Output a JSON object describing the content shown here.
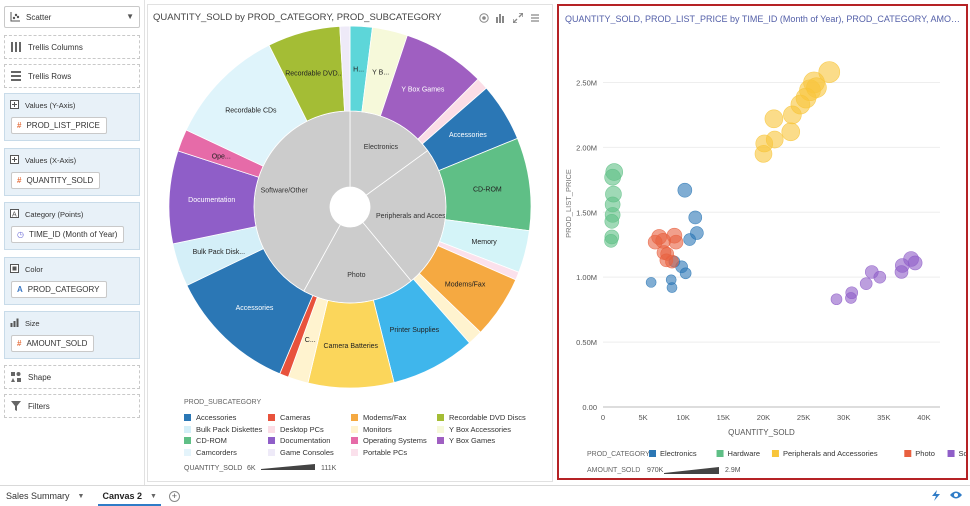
{
  "grammar": {
    "chart_type": "Scatter",
    "trellis_columns": "Trellis Columns",
    "trellis_rows": "Trellis Rows",
    "slots": [
      {
        "label": "Values (Y-Axis)",
        "item": "PROD_LIST_PRICE",
        "item_icon": "hash-icon"
      },
      {
        "label": "Values (X-Axis)",
        "item": "QUANTITY_SOLD",
        "item_icon": "hash-icon"
      },
      {
        "label": "Category (Points)",
        "item": "TIME_ID (Month of Year)",
        "item_icon": "clock-icon"
      },
      {
        "label": "Color",
        "item": "PROD_CATEGORY",
        "item_icon": "text-attribute-icon"
      },
      {
        "label": "Size",
        "item": "AMOUNT_SOLD",
        "item_icon": "hash-icon"
      }
    ],
    "shape": "Shape",
    "filters": "Filters"
  },
  "sunburst": {
    "title": "QUANTITY_SOLD by PROD_CATEGORY, PROD_SUBCATEGORY",
    "legend_title": "PROD_SUBCATEGORY",
    "legend": [
      {
        "name": "Accessories",
        "color": "#2b77b5"
      },
      {
        "name": "Bulk Pack Diskettes",
        "color": "#d4eff8"
      },
      {
        "name": "CD-ROM",
        "color": "#5fbf86"
      },
      {
        "name": "Camcorders",
        "color": "#e4f4fb"
      },
      {
        "name": "Cameras",
        "color": "#e8523c"
      },
      {
        "name": "Desktop PCs",
        "color": "#fbdde6"
      },
      {
        "name": "Documentation",
        "color": "#8f5ec8"
      },
      {
        "name": "Game Consoles",
        "color": "#eeeaf8"
      },
      {
        "name": "Modems/Fax",
        "color": "#f5a941"
      },
      {
        "name": "Monitors",
        "color": "#fff3cf"
      },
      {
        "name": "Operating Systems",
        "color": "#e66ba8"
      },
      {
        "name": "Portable PCs",
        "color": "#fbe1ec"
      },
      {
        "name": "Recordable DVD Discs",
        "color": "#a4bd35"
      },
      {
        "name": "Y Box Accessories",
        "color": "#f6f9da"
      },
      {
        "name": "Y Box Games",
        "color": "#9f5fc1"
      }
    ],
    "size_label": "QUANTITY_SOLD",
    "size_min": "6K",
    "size_max": "111K",
    "inner": [
      {
        "name": "Electronics",
        "value": 15
      },
      {
        "name": "Peripherals and Accesso...",
        "value": 24
      },
      {
        "name": "Photo",
        "value": 19
      },
      {
        "name": "Software/Other",
        "value": 42
      }
    ],
    "outer": [
      {
        "name": "H...",
        "value": 2.2,
        "color": "#5dd6d9"
      },
      {
        "name": "Y B...",
        "value": 3.5,
        "color": "#f6f9da"
      },
      {
        "name": "Y Box Games",
        "value": 8.2,
        "color": "#9f5fc1"
      },
      {
        "name": "",
        "value": 1.2,
        "color": "#fbdde6"
      },
      {
        "name": "Accessories",
        "value": 5.8,
        "color": "#2b77b5"
      },
      {
        "name": "CD-ROM",
        "value": 9.2,
        "color": "#5fbf86"
      },
      {
        "name": "Memory",
        "value": 4.2,
        "color": "#d4f4f8"
      },
      {
        "name": "",
        "value": 0.8,
        "color": "#fbe1ec"
      },
      {
        "name": "Modems/Fax",
        "value": 6.2,
        "color": "#f5a941"
      },
      {
        "name": "",
        "value": 1.5,
        "color": "#fff3cf"
      },
      {
        "name": "Printer Supplies",
        "value": 8.4,
        "color": "#3fb6ec"
      },
      {
        "name": "Camera Batteries",
        "value": 8.5,
        "color": "#fbd65b"
      },
      {
        "name": "C...",
        "value": 2.0,
        "color": "#fff3cf"
      },
      {
        "name": "",
        "value": 0.9,
        "color": "#e8523c"
      },
      {
        "name": "Accessories",
        "value": 12.8,
        "color": "#2b77b5"
      },
      {
        "name": "Bulk Pack Disk...",
        "value": 4.3,
        "color": "#d4eff8"
      },
      {
        "name": "Documentation",
        "value": 9.2,
        "color": "#8f5ec8"
      },
      {
        "name": "Ope...",
        "value": 2.2,
        "color": "#e66ba8"
      },
      {
        "name": "Recordable CDs",
        "value": 11.8,
        "color": "#dff4fb"
      },
      {
        "name": "Recordable DVD...",
        "value": 7.2,
        "color": "#a4bd35"
      },
      {
        "name": "",
        "value": 1.0,
        "color": "#eeeaf8"
      }
    ]
  },
  "scatter": {
    "title": "QUANTITY_SOLD, PROD_LIST_PRICE by TIME_ID (Month of Year), PROD_CATEGORY, AMOUNT_SOLD",
    "legend_title": "PROD_CATEGORY",
    "legend_size_label": "AMOUNT_SOLD",
    "legend_size_min": "970K",
    "legend_size_max": "2.9M"
  },
  "chart_data": {
    "type": "scatter",
    "title": "QUANTITY_SOLD, PROD_LIST_PRICE by TIME_ID (Month of Year), PROD_CATEGORY, AMOUNT_SOLD",
    "xlabel": "QUANTITY_SOLD",
    "ylabel": "PROD_LIST_PRICE",
    "xlim": [
      0,
      42000
    ],
    "ylim": [
      0,
      2750000
    ],
    "xticks": [
      "0",
      "5K",
      "10K",
      "15K",
      "20K",
      "25K",
      "30K",
      "35K",
      "40K"
    ],
    "yticks": [
      "0.00",
      "0.50M",
      "1.00M",
      "1.50M",
      "2.00M",
      "2.50M"
    ],
    "grid": true,
    "legend_position": "bottom",
    "series": [
      {
        "name": "Electronics",
        "color": "#2b77b5",
        "points": [
          {
            "x": 10200,
            "y": 1670000,
            "r": 7
          },
          {
            "x": 11500,
            "y": 1460000,
            "r": 6.5
          },
          {
            "x": 11700,
            "y": 1340000,
            "r": 6.5
          },
          {
            "x": 10800,
            "y": 1290000,
            "r": 6
          },
          {
            "x": 9800,
            "y": 1080000,
            "r": 6
          },
          {
            "x": 10300,
            "y": 1030000,
            "r": 5.5
          },
          {
            "x": 8900,
            "y": 1120000,
            "r": 5.5
          },
          {
            "x": 6000,
            "y": 960000,
            "r": 5
          },
          {
            "x": 8500,
            "y": 980000,
            "r": 5
          },
          {
            "x": 8600,
            "y": 920000,
            "r": 5
          }
        ]
      },
      {
        "name": "Hardware",
        "color": "#5fbf86",
        "points": [
          {
            "x": 1400,
            "y": 1810000,
            "r": 8.5
          },
          {
            "x": 1200,
            "y": 1770000,
            "r": 8
          },
          {
            "x": 1300,
            "y": 1640000,
            "r": 8
          },
          {
            "x": 1200,
            "y": 1560000,
            "r": 7.5
          },
          {
            "x": 1200,
            "y": 1480000,
            "r": 7.5
          },
          {
            "x": 1100,
            "y": 1430000,
            "r": 7
          },
          {
            "x": 1100,
            "y": 1310000,
            "r": 7
          },
          {
            "x": 1000,
            "y": 1280000,
            "r": 6.5
          }
        ]
      },
      {
        "name": "Peripherals and Accessories",
        "color": "#f8c53a",
        "points": [
          {
            "x": 28200,
            "y": 2580000,
            "r": 10.5
          },
          {
            "x": 26300,
            "y": 2500000,
            "r": 10.5
          },
          {
            "x": 25800,
            "y": 2440000,
            "r": 10.5
          },
          {
            "x": 26600,
            "y": 2460000,
            "r": 10
          },
          {
            "x": 25300,
            "y": 2380000,
            "r": 10
          },
          {
            "x": 24600,
            "y": 2330000,
            "r": 9.5
          },
          {
            "x": 23600,
            "y": 2250000,
            "r": 9
          },
          {
            "x": 21300,
            "y": 2220000,
            "r": 9
          },
          {
            "x": 23400,
            "y": 2120000,
            "r": 9
          },
          {
            "x": 21400,
            "y": 2060000,
            "r": 8.5
          },
          {
            "x": 20100,
            "y": 2030000,
            "r": 8.5
          },
          {
            "x": 20000,
            "y": 1950000,
            "r": 8.5
          }
        ]
      },
      {
        "name": "Photo",
        "color": "#e8603f",
        "points": [
          {
            "x": 7000,
            "y": 1310000,
            "r": 7.5
          },
          {
            "x": 7500,
            "y": 1280000,
            "r": 7.5
          },
          {
            "x": 8900,
            "y": 1320000,
            "r": 7.5
          },
          {
            "x": 9100,
            "y": 1270000,
            "r": 7
          },
          {
            "x": 6500,
            "y": 1270000,
            "r": 7
          },
          {
            "x": 7600,
            "y": 1190000,
            "r": 7
          },
          {
            "x": 7900,
            "y": 1130000,
            "r": 6.5
          },
          {
            "x": 8600,
            "y": 1120000,
            "r": 6.5
          },
          {
            "x": 8000,
            "y": 1180000,
            "r": 6.5
          }
        ]
      },
      {
        "name": "Software/Other",
        "color": "#8f5ec8",
        "points": [
          {
            "x": 38400,
            "y": 1140000,
            "r": 7.5
          },
          {
            "x": 38900,
            "y": 1110000,
            "r": 7
          },
          {
            "x": 37300,
            "y": 1090000,
            "r": 7
          },
          {
            "x": 37200,
            "y": 1040000,
            "r": 6.5
          },
          {
            "x": 33500,
            "y": 1040000,
            "r": 6.5
          },
          {
            "x": 34500,
            "y": 1000000,
            "r": 6
          },
          {
            "x": 32800,
            "y": 950000,
            "r": 6
          },
          {
            "x": 31000,
            "y": 880000,
            "r": 6
          },
          {
            "x": 30900,
            "y": 840000,
            "r": 5.5
          },
          {
            "x": 29100,
            "y": 830000,
            "r": 5.5
          }
        ]
      }
    ]
  },
  "tabs": {
    "items": [
      {
        "label": "Sales Summary",
        "active": false
      },
      {
        "label": "Canvas 2",
        "active": true
      }
    ]
  }
}
